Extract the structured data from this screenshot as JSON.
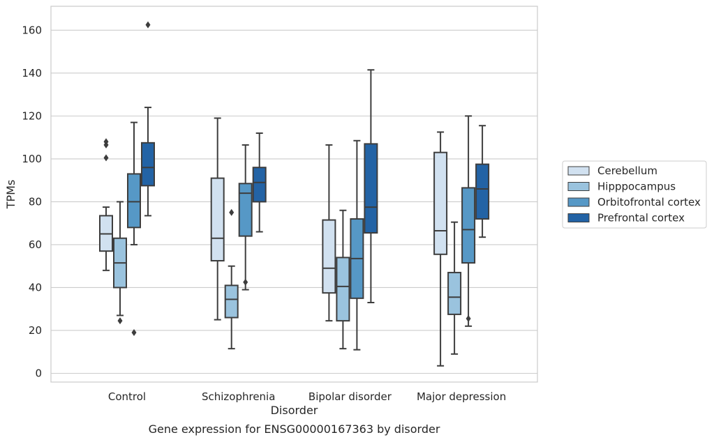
{
  "chart_data": {
    "type": "box",
    "title": "Gene expression for ENSG00000167363 by disorder",
    "xlabel": "Disorder",
    "ylabel": "TPMs",
    "ylim": [
      -4,
      171
    ],
    "yticks": [
      0,
      20,
      40,
      60,
      80,
      100,
      120,
      140,
      160
    ],
    "grid": true,
    "legend_position": "right",
    "categories": [
      "Control",
      "Schizophrenia",
      "Bipolar disorder",
      "Major depression"
    ],
    "series": [
      {
        "name": "Cerebellum",
        "color": "#d1e1f0",
        "boxes": [
          {
            "whisker_low": 48,
            "q1": 57,
            "median": 65,
            "q3": 73.5,
            "whisker_high": 77.5,
            "outliers": [
              100.5,
              106.5,
              108
            ]
          },
          {
            "whisker_low": 25,
            "q1": 52.5,
            "median": 63,
            "q3": 91,
            "whisker_high": 119,
            "outliers": []
          },
          {
            "whisker_low": 24.5,
            "q1": 37.5,
            "median": 49,
            "q3": 71.5,
            "whisker_high": 106.5,
            "outliers": []
          },
          {
            "whisker_low": 3.5,
            "q1": 55.5,
            "median": 66.5,
            "q3": 103,
            "whisker_high": 112.5,
            "outliers": []
          }
        ]
      },
      {
        "name": "Hipppocampus",
        "color": "#9ac3de",
        "boxes": [
          {
            "whisker_low": 27,
            "q1": 40,
            "median": 51.5,
            "q3": 63,
            "whisker_high": 80,
            "outliers": [
              24.5
            ]
          },
          {
            "whisker_low": 11.5,
            "q1": 26,
            "median": 34.5,
            "q3": 41,
            "whisker_high": 50,
            "outliers": [
              75
            ]
          },
          {
            "whisker_low": 11.5,
            "q1": 24.5,
            "median": 40.5,
            "q3": 54,
            "whisker_high": 76,
            "outliers": []
          },
          {
            "whisker_low": 9,
            "q1": 27.5,
            "median": 35.5,
            "q3": 47,
            "whisker_high": 70.5,
            "outliers": []
          }
        ]
      },
      {
        "name": "Orbitofrontal cortex",
        "color": "#5698c6",
        "boxes": [
          {
            "whisker_low": 60,
            "q1": 68,
            "median": 80,
            "q3": 93,
            "whisker_high": 117,
            "outliers": [
              19
            ]
          },
          {
            "whisker_low": 39,
            "q1": 64,
            "median": 84,
            "q3": 88.5,
            "whisker_high": 106.5,
            "outliers": [
              42.5
            ]
          },
          {
            "whisker_low": 11,
            "q1": 35,
            "median": 53.5,
            "q3": 72,
            "whisker_high": 108.5,
            "outliers": []
          },
          {
            "whisker_low": 22,
            "q1": 51.5,
            "median": 67,
            "q3": 86.5,
            "whisker_high": 120,
            "outliers": [
              25.5
            ]
          }
        ]
      },
      {
        "name": "Prefrontal cortex",
        "color": "#2363a5",
        "boxes": [
          {
            "whisker_low": 73.5,
            "q1": 87.5,
            "median": 96,
            "q3": 107.5,
            "whisker_high": 124,
            "outliers": [
              162.5
            ]
          },
          {
            "whisker_low": 66,
            "q1": 80,
            "median": 89,
            "q3": 96,
            "whisker_high": 112,
            "outliers": []
          },
          {
            "whisker_low": 33,
            "q1": 65.5,
            "median": 77.5,
            "q3": 107,
            "whisker_high": 141.5,
            "outliers": []
          },
          {
            "whisker_low": 63.5,
            "q1": 72,
            "median": 86,
            "q3": 97.5,
            "whisker_high": 115.5,
            "outliers": []
          }
        ]
      }
    ]
  }
}
